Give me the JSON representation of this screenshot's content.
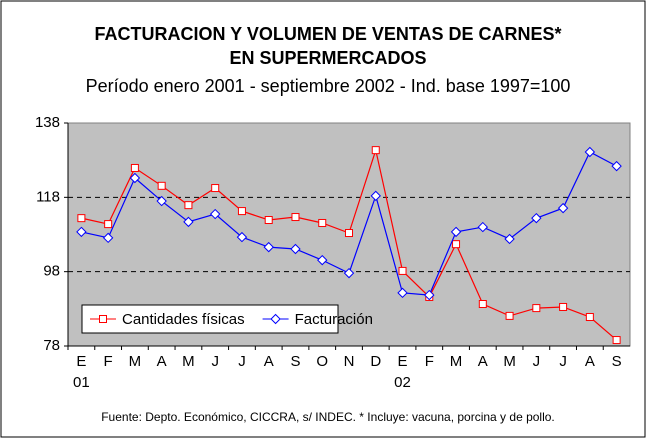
{
  "chart_data": {
    "type": "line",
    "title": [
      "FACTURACION Y VOLUMEN DE VENTAS DE CARNES*",
      "EN SUPERMERCADOS"
    ],
    "subtitle": "Período enero 2001 - septiembre 2002 - Ind. base 1997=100",
    "categories": [
      "E",
      "F",
      "M",
      "A",
      "M",
      "J",
      "J",
      "A",
      "S",
      "O",
      "N",
      "D",
      "E",
      "F",
      "M",
      "A",
      "M",
      "J",
      "J",
      "A",
      "S"
    ],
    "year_labels": [
      "01",
      null,
      null,
      null,
      null,
      null,
      null,
      null,
      null,
      null,
      null,
      null,
      "02",
      null,
      null,
      null,
      null,
      null,
      null,
      null,
      null
    ],
    "series": [
      {
        "name": "Cantidades físicas",
        "color": "#ff0000",
        "marker": "square",
        "values": [
          112.4,
          110.8,
          125.9,
          121.1,
          115.9,
          120.5,
          114.3,
          111.9,
          112.7,
          111.1,
          108.4,
          130.7,
          98.2,
          91.2,
          105.4,
          89.3,
          86.1,
          88.2,
          88.5,
          85.8,
          79.6
        ]
      },
      {
        "name": "Facturación",
        "color": "#0000ff",
        "marker": "diamond",
        "values": [
          108.7,
          107.1,
          123.2,
          117.0,
          111.4,
          113.5,
          107.3,
          104.6,
          104.1,
          101.1,
          97.6,
          118.4,
          92.3,
          91.7,
          108.7,
          110.0,
          106.8,
          112.4,
          115.1,
          130.2,
          126.4
        ]
      }
    ],
    "ylim": [
      78,
      138
    ],
    "yticks": [
      78,
      98,
      118,
      138
    ],
    "grid": true,
    "legend": "lower left",
    "footnote": "Fuente: Depto. Económico, CICCRA, s/ INDEC. * Incluye: vacuna, porcina y de pollo."
  }
}
